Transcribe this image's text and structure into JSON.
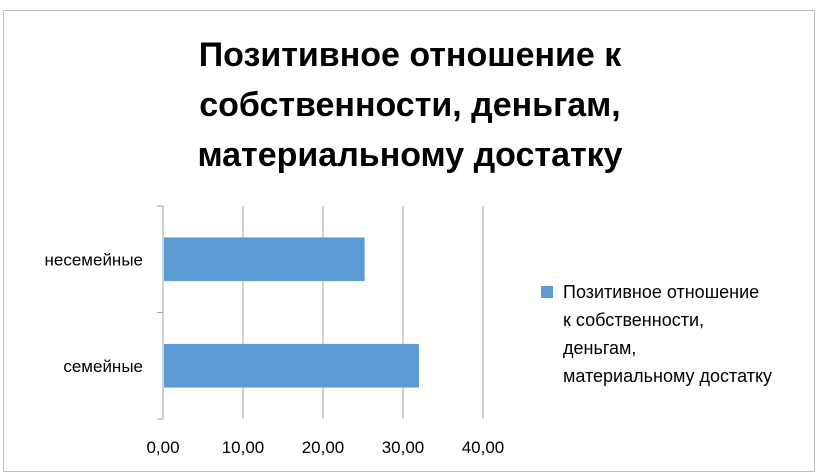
{
  "chart_data": {
    "type": "bar",
    "orientation": "horizontal",
    "title_lines": [
      "Позитивное отношение к",
      "собственности, деньгам,",
      "материальному достатку"
    ],
    "categories": [
      "несемейные",
      "семейные"
    ],
    "series": [
      {
        "name": "Позитивное отношение к собственности, деньгам, материальному достатку",
        "values": [
          25.2,
          32.0
        ],
        "color": "#5b9bd5"
      }
    ],
    "xlim": [
      0,
      40
    ],
    "xticks": [
      "0,00",
      "10,00",
      "20,00",
      "30,00",
      "40,00"
    ],
    "grid": "vertical",
    "legend_position": "right"
  },
  "legend": {
    "lines": [
      "Позитивное отношение",
      "к собственности,",
      "деньгам,",
      "материальному достатку"
    ]
  },
  "colors": {
    "bar": "#5b9bd5",
    "grid": "#a6a6a6",
    "frame": "#bfbfbf"
  }
}
